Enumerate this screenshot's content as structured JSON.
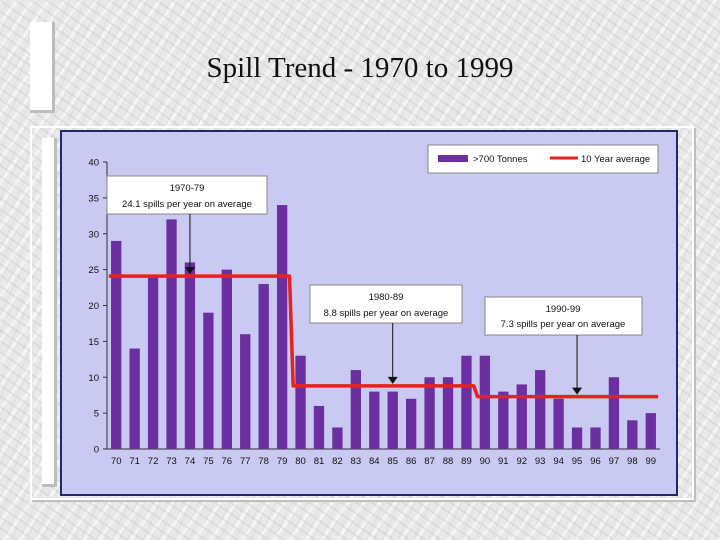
{
  "slide": {
    "title": "Spill Trend - 1970 to 1999"
  },
  "colors": {
    "bar": "#6b2fa0",
    "average_line": "#e8211b",
    "plot_bg": "#c9c9f2",
    "frame": "#26266a"
  },
  "chart_data": {
    "type": "bar",
    "categories": [
      "70",
      "71",
      "72",
      "73",
      "74",
      "75",
      "76",
      "77",
      "78",
      "79",
      "80",
      "81",
      "82",
      "83",
      "84",
      "85",
      "86",
      "87",
      "88",
      "89",
      "90",
      "91",
      "92",
      "93",
      "94",
      "95",
      "96",
      "97",
      "98",
      "99"
    ],
    "series": [
      {
        "name": ">700 Tonnes",
        "type": "bar",
        "values": [
          29,
          14,
          24,
          32,
          26,
          19,
          25,
          16,
          23,
          34,
          13,
          6,
          3,
          11,
          8,
          8,
          7,
          10,
          10,
          13,
          13,
          8,
          9,
          11,
          7,
          3,
          3,
          10,
          4,
          5
        ]
      },
      {
        "name": "10 Year average",
        "type": "line",
        "values": [
          24.1,
          24.1,
          24.1,
          24.1,
          24.1,
          24.1,
          24.1,
          24.1,
          24.1,
          24.1,
          8.8,
          8.8,
          8.8,
          8.8,
          8.8,
          8.8,
          8.8,
          8.8,
          8.8,
          8.8,
          7.3,
          7.3,
          7.3,
          7.3,
          7.3,
          7.3,
          7.3,
          7.3,
          7.3,
          7.3
        ]
      }
    ],
    "yticks": [
      "0",
      "5",
      "10",
      "15",
      "20",
      "25",
      "30",
      "35",
      "40"
    ],
    "ylim": [
      0,
      40
    ],
    "legend_position": "top-right",
    "annotations": [
      {
        "title": "1970-79",
        "text": "24.1 spills per year on average",
        "points_to": "74"
      },
      {
        "title": "1980-89",
        "text": "8.8 spills per year on average",
        "points_to": "85"
      },
      {
        "title": "1990-99",
        "text": "7.3 spills per year on average",
        "points_to": "95"
      }
    ]
  }
}
